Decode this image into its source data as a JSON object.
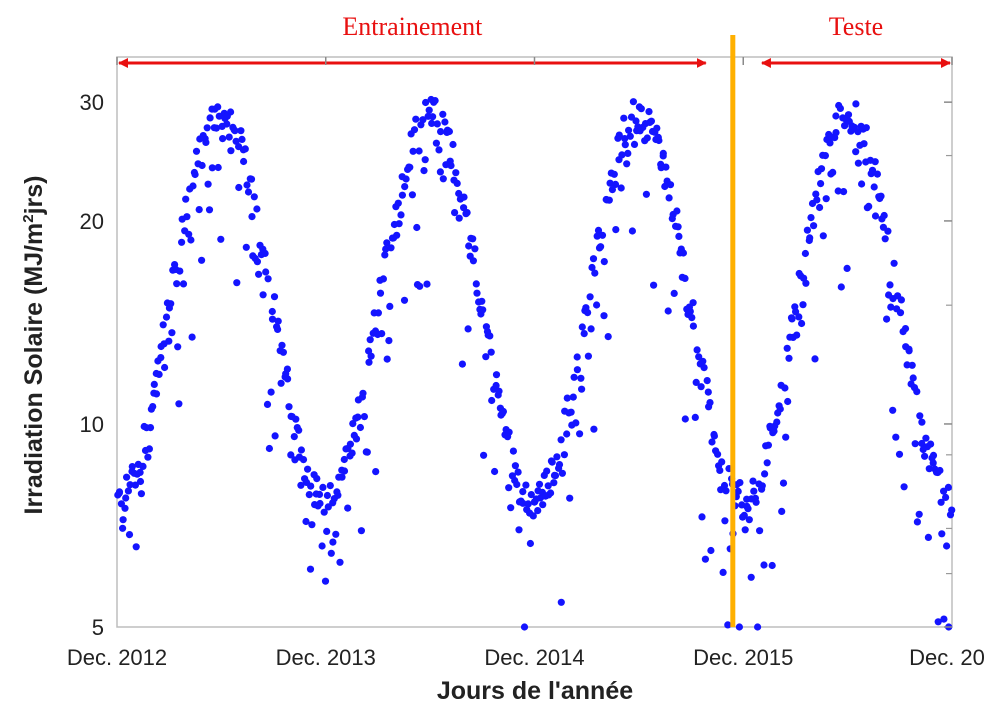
{
  "chart_data": {
    "type": "scatter",
    "xlabel": "Jours de l'année",
    "ylabel_main": "Irradiation Solaire (MJ/m",
    "ylabel_sup": "2",
    "ylabel_end": "jrs)",
    "x_ticks": [
      "Dec. 2012",
      "Dec. 2013",
      "Dec. 2014",
      "Dec. 2015",
      "Dec. 20"
    ],
    "y_ticks": [
      5,
      10,
      20,
      30
    ],
    "y_scale": "log",
    "ylim": [
      5,
      35
    ],
    "xlim_years": [
      0,
      4
    ],
    "point_color": "#1414ff",
    "split_color": "#ffb000",
    "arrow_color": "#e81010",
    "regions": [
      {
        "label": "Entrainement",
        "start_year": 0,
        "end_year": 2.83
      },
      {
        "label": "Teste",
        "start_year": 3.08,
        "end_year": 4.0
      }
    ],
    "split_year": 2.95,
    "series": [
      {
        "seasonal_model": {
          "peak_value": 29,
          "trough_value": 7.8,
          "peak_phase": 0.5,
          "points_per_year": 180
        }
      }
    ]
  }
}
